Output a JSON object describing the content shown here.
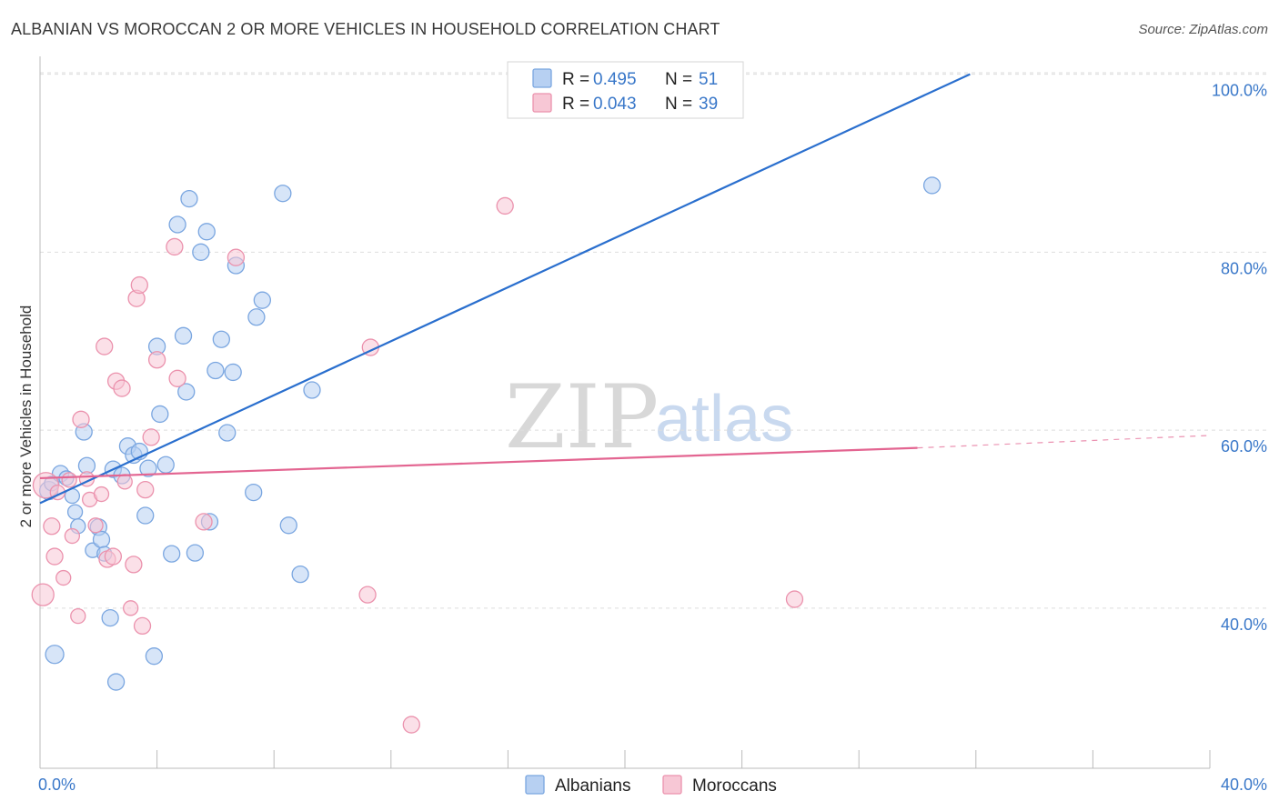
{
  "title": "ALBANIAN VS MOROCCAN 2 OR MORE VEHICLES IN HOUSEHOLD CORRELATION CHART",
  "source": "Source: ZipAtlas.com",
  "watermark": {
    "zip": "ZIP",
    "atlas": "atlas"
  },
  "colors": {
    "albanian_fill": "#b7d0f2",
    "albanian_stroke": "#7aa6e0",
    "albanian_line": "#2a6fce",
    "moroccan_fill": "#f7c7d5",
    "moroccan_stroke": "#eb92ad",
    "moroccan_line": "#e36591",
    "grid": "#dddddd",
    "axis_label": "#3a78c9"
  },
  "legend": {
    "r_label": "R =",
    "n_label": "N =",
    "entries": [
      {
        "r": "0.495",
        "n": "51"
      },
      {
        "r": "0.043",
        "n": "39"
      }
    ]
  },
  "bottom_legend": [
    "Albanians",
    "Moroccans"
  ],
  "chart_data": {
    "type": "scatter",
    "title": "ALBANIAN VS MOROCCAN 2 OR MORE VEHICLES IN HOUSEHOLD CORRELATION CHART",
    "xlabel": "",
    "ylabel": "2 or more Vehicles in Household",
    "xlim": [
      0,
      40
    ],
    "ylim": [
      22,
      102
    ],
    "x_tick_labels": [
      "0.0%",
      "40.0%"
    ],
    "y_ticks": [
      40,
      60,
      80,
      100
    ],
    "y_tick_labels": [
      "40.0%",
      "60.0%",
      "80.0%",
      "100.0%"
    ],
    "grid": true,
    "series": [
      {
        "name": "Albanians",
        "r": 0.495,
        "n": 51,
        "trend": {
          "x": [
            0,
            31.8
          ],
          "y": [
            51.8,
            100.0
          ],
          "dashed_to": null
        },
        "points": [
          [
            0.3,
            53.2,
            10
          ],
          [
            0.4,
            54.0,
            8
          ],
          [
            0.5,
            34.8,
            10
          ],
          [
            0.7,
            55.1,
            9
          ],
          [
            0.9,
            54.6,
            8
          ],
          [
            1.1,
            52.6,
            8
          ],
          [
            1.2,
            50.8,
            8
          ],
          [
            1.3,
            49.2,
            8
          ],
          [
            1.5,
            59.8,
            9
          ],
          [
            1.6,
            56.0,
            9
          ],
          [
            1.8,
            46.5,
            8
          ],
          [
            2.0,
            49.1,
            9
          ],
          [
            2.1,
            47.7,
            9
          ],
          [
            2.2,
            46.1,
            8
          ],
          [
            2.4,
            38.9,
            9
          ],
          [
            2.6,
            31.7,
            9
          ],
          [
            2.5,
            55.6,
            9
          ],
          [
            2.8,
            54.9,
            9
          ],
          [
            3.0,
            58.2,
            9
          ],
          [
            3.2,
            57.2,
            9
          ],
          [
            3.4,
            57.6,
            9
          ],
          [
            3.6,
            50.4,
            9
          ],
          [
            3.7,
            55.7,
            9
          ],
          [
            3.9,
            34.6,
            9
          ],
          [
            4.0,
            69.4,
            9
          ],
          [
            4.1,
            61.8,
            9
          ],
          [
            4.3,
            56.1,
            9
          ],
          [
            4.5,
            46.1,
            9
          ],
          [
            4.7,
            83.1,
            9
          ],
          [
            4.9,
            70.6,
            9
          ],
          [
            5.0,
            64.3,
            9
          ],
          [
            5.1,
            86.0,
            9
          ],
          [
            5.3,
            46.2,
            9
          ],
          [
            5.5,
            80.0,
            9
          ],
          [
            5.7,
            82.3,
            9
          ],
          [
            5.8,
            49.7,
            9
          ],
          [
            6.0,
            66.7,
            9
          ],
          [
            6.2,
            70.2,
            9
          ],
          [
            6.4,
            59.7,
            9
          ],
          [
            6.6,
            66.5,
            9
          ],
          [
            6.7,
            78.5,
            9
          ],
          [
            7.3,
            53.0,
            9
          ],
          [
            7.4,
            72.7,
            9
          ],
          [
            7.6,
            74.6,
            9
          ],
          [
            8.3,
            86.6,
            9
          ],
          [
            8.5,
            49.3,
            9
          ],
          [
            8.9,
            43.8,
            9
          ],
          [
            9.3,
            64.5,
            9
          ],
          [
            30.5,
            87.5,
            9
          ]
        ]
      },
      {
        "name": "Moroccans",
        "r": 0.043,
        "n": 39,
        "trend": {
          "x": [
            0,
            30.0
          ],
          "y": [
            54.6,
            58.0
          ],
          "dashed_to": [
            40,
            59.4
          ]
        },
        "points": [
          [
            0.1,
            41.5,
            12
          ],
          [
            0.2,
            53.8,
            14
          ],
          [
            0.4,
            49.2,
            9
          ],
          [
            0.5,
            45.8,
            9
          ],
          [
            0.6,
            53.0,
            8
          ],
          [
            0.8,
            43.4,
            8
          ],
          [
            1.0,
            54.4,
            8
          ],
          [
            1.1,
            48.1,
            8
          ],
          [
            1.3,
            39.1,
            8
          ],
          [
            1.4,
            61.2,
            9
          ],
          [
            1.6,
            54.5,
            8
          ],
          [
            1.7,
            52.2,
            8
          ],
          [
            1.9,
            49.3,
            8
          ],
          [
            2.1,
            52.8,
            8
          ],
          [
            2.2,
            69.4,
            9
          ],
          [
            2.3,
            45.5,
            9
          ],
          [
            2.5,
            45.8,
            9
          ],
          [
            2.6,
            65.5,
            9
          ],
          [
            2.8,
            64.7,
            9
          ],
          [
            2.9,
            54.2,
            8
          ],
          [
            3.1,
            40.0,
            8
          ],
          [
            3.2,
            44.9,
            9
          ],
          [
            3.3,
            74.8,
            9
          ],
          [
            3.4,
            76.3,
            9
          ],
          [
            3.5,
            38.0,
            9
          ],
          [
            3.6,
            53.3,
            9
          ],
          [
            3.8,
            59.2,
            9
          ],
          [
            4.0,
            67.9,
            9
          ],
          [
            4.6,
            80.6,
            9
          ],
          [
            4.7,
            65.8,
            9
          ],
          [
            5.6,
            49.7,
            9
          ],
          [
            6.7,
            79.4,
            9
          ],
          [
            11.3,
            69.3,
            9
          ],
          [
            11.2,
            41.5,
            9
          ],
          [
            12.7,
            26.9,
            9
          ],
          [
            15.9,
            85.2,
            9
          ],
          [
            25.8,
            41.0,
            9
          ]
        ]
      }
    ]
  }
}
